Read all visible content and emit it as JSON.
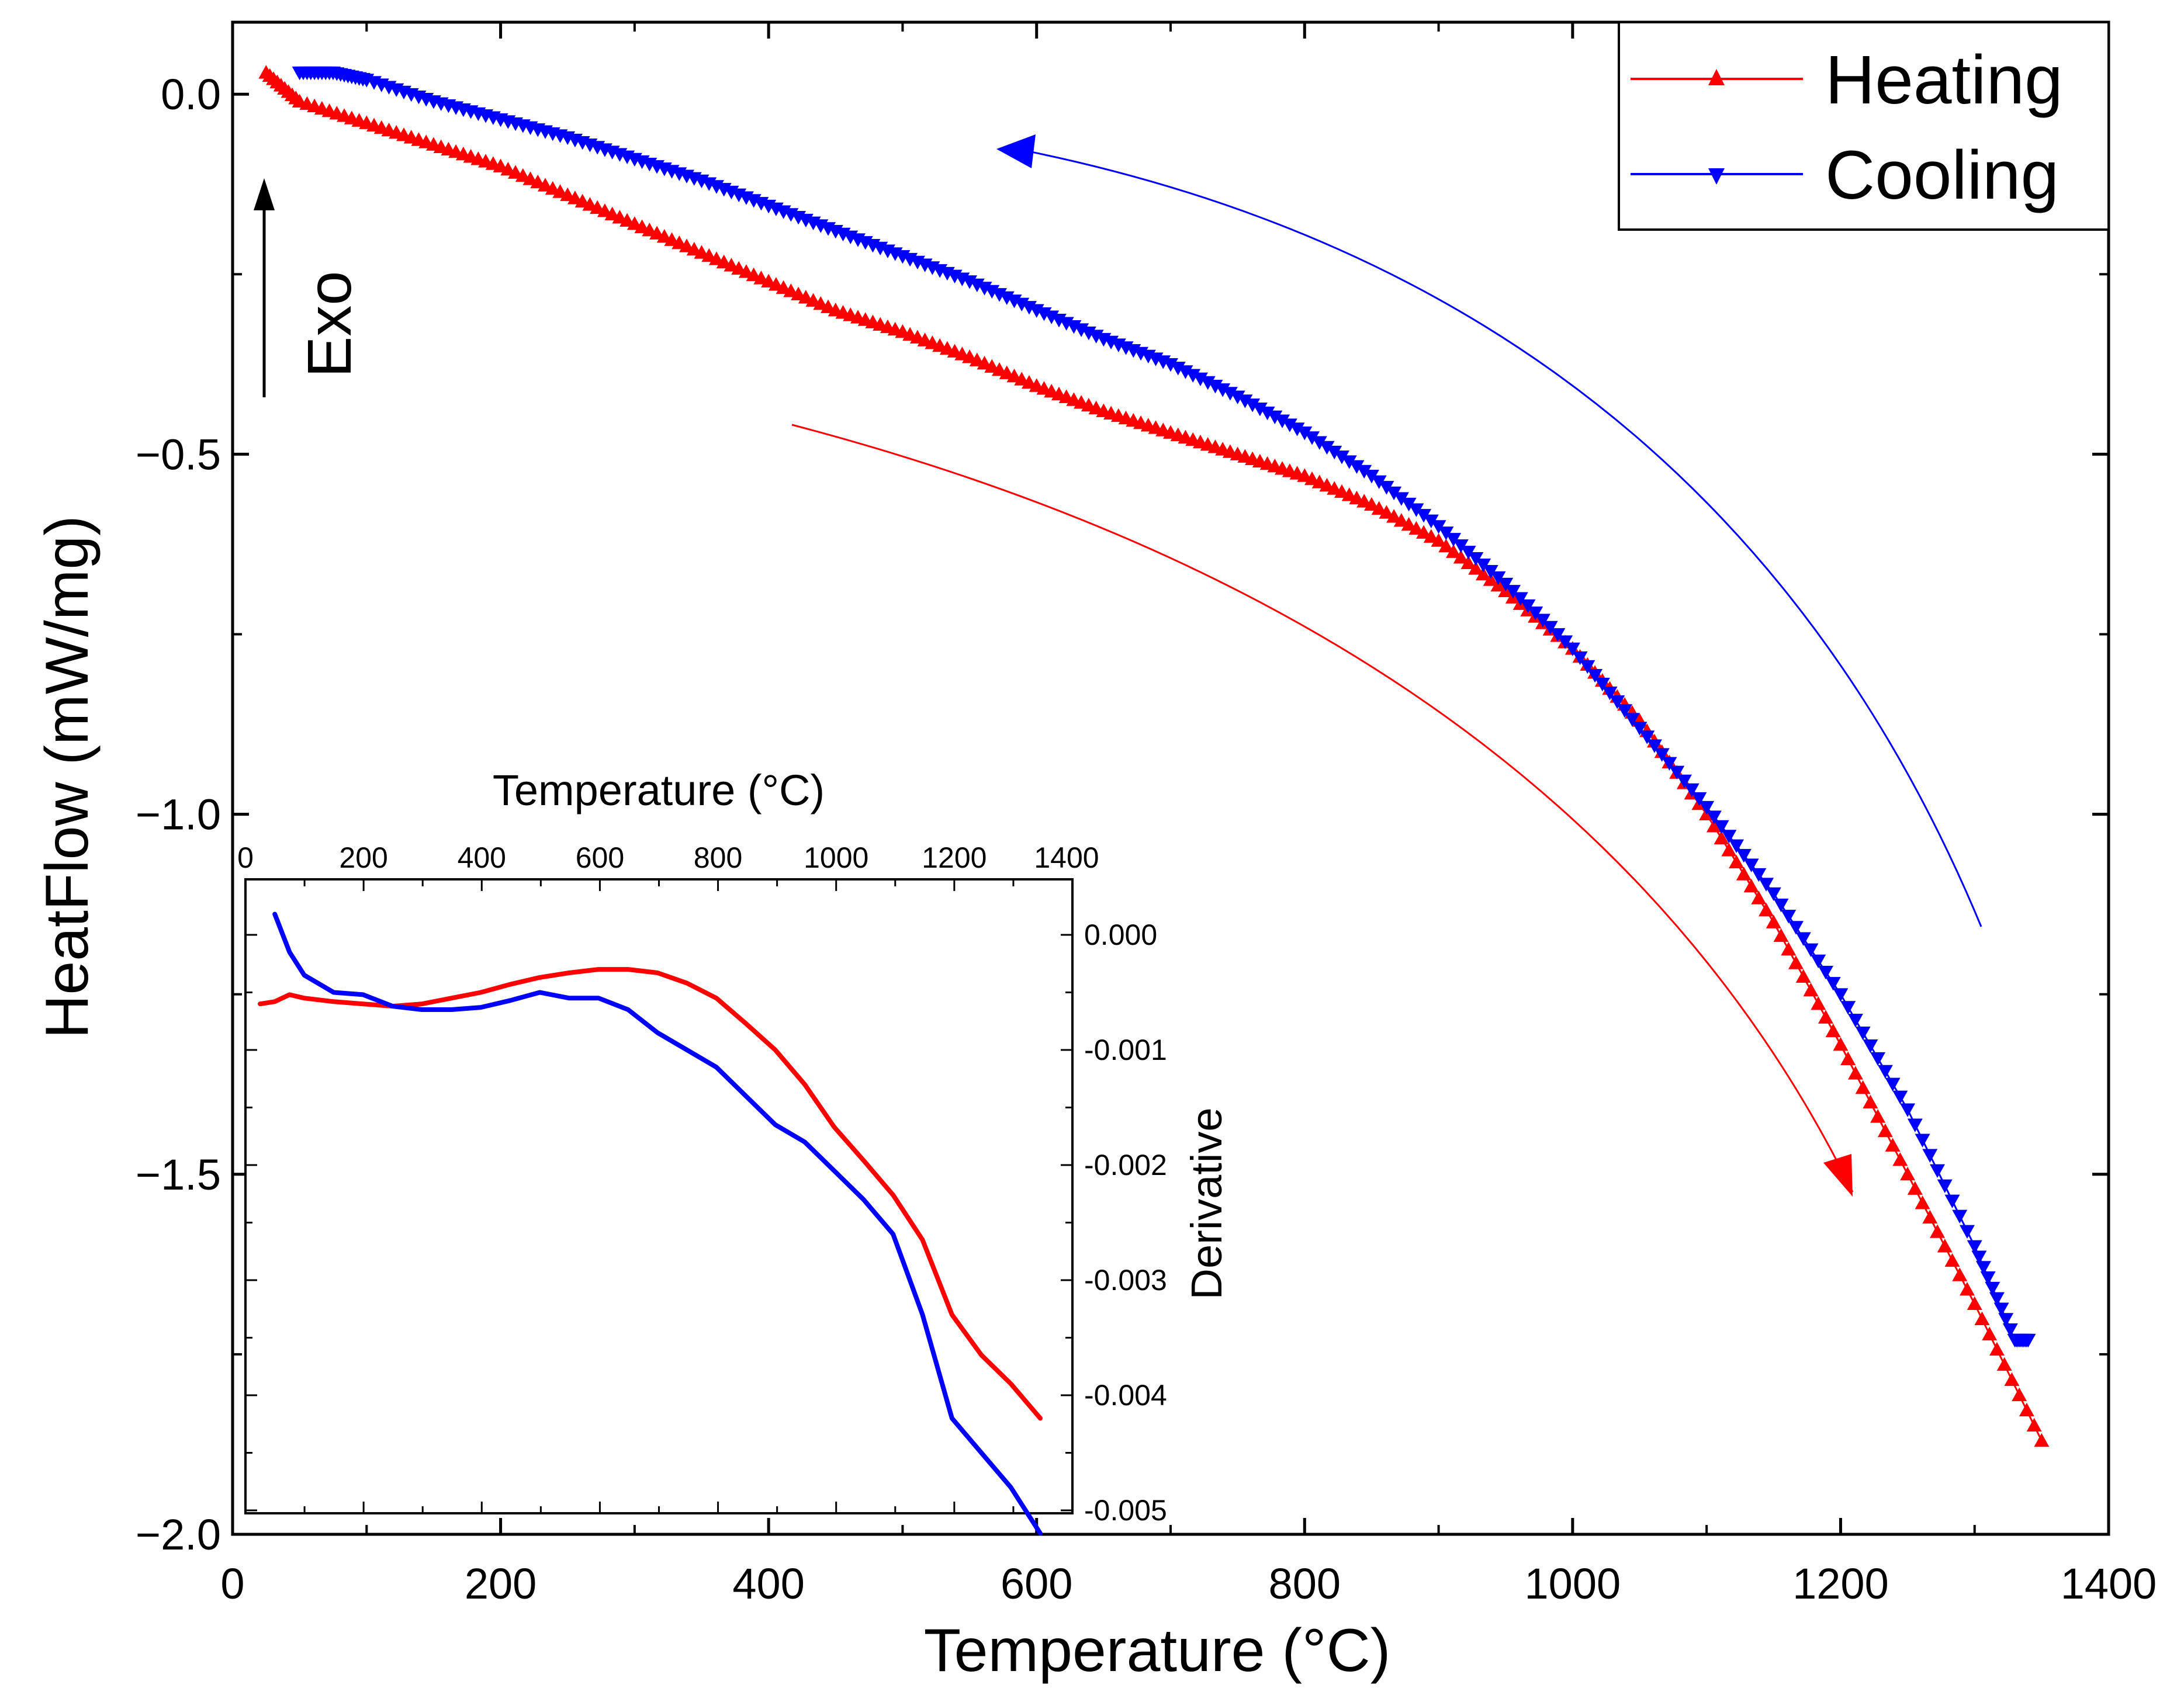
{
  "chart_data": [
    {
      "id": "main",
      "type": "scatter",
      "title": "",
      "xlabel": "Temperature (°C)",
      "ylabel": "HeatFlow (mW/mg)",
      "xlim": [
        0,
        1400
      ],
      "ylim": [
        -2.0,
        0.1
      ],
      "xticks": [
        0,
        200,
        400,
        600,
        800,
        1000,
        1200,
        1400
      ],
      "xtick_labels": [
        "0",
        "200",
        "400",
        "600",
        "800",
        "1000",
        "1200",
        "1400"
      ],
      "yticks": [
        0.0,
        -0.5,
        -1.0,
        -1.5,
        -2.0
      ],
      "ytick_labels": [
        "0.0",
        "−0.5",
        "−1.0",
        "−1.5",
        "−2.0"
      ],
      "grid": false,
      "legend_position": "top-right",
      "series": [
        {
          "name": "Heating",
          "color": "#ff0000",
          "marker": "triangle-up",
          "x": [
            25,
            50,
            100,
            150,
            200,
            250,
            300,
            350,
            400,
            450,
            500,
            550,
            600,
            650,
            700,
            750,
            800,
            850,
            900,
            950,
            1000,
            1050,
            1100,
            1150,
            1200,
            1250,
            1300,
            1350
          ],
          "y": [
            0.03,
            -0.01,
            -0.04,
            -0.07,
            -0.1,
            -0.14,
            -0.18,
            -0.22,
            -0.26,
            -0.3,
            -0.33,
            -0.365,
            -0.405,
            -0.44,
            -0.47,
            -0.5,
            -0.53,
            -0.57,
            -0.62,
            -0.69,
            -0.77,
            -0.87,
            -1.0,
            -1.15,
            -1.32,
            -1.5,
            -1.68,
            -1.87
          ]
        },
        {
          "name": "Cooling",
          "color": "#0000ff",
          "marker": "triangle-down",
          "x": [
            1340,
            1330,
            1300,
            1250,
            1200,
            1150,
            1100,
            1050,
            1000,
            950,
            900,
            850,
            800,
            750,
            700,
            650,
            600,
            550,
            500,
            450,
            400,
            350,
            300,
            250,
            200,
            150,
            100,
            75,
            50
          ],
          "y": [
            -1.73,
            -1.73,
            -1.6,
            -1.41,
            -1.25,
            -1.11,
            -0.99,
            -0.88,
            -0.77,
            -0.68,
            -0.6,
            -0.53,
            -0.47,
            -0.42,
            -0.375,
            -0.34,
            -0.3,
            -0.26,
            -0.225,
            -0.19,
            -0.155,
            -0.12,
            -0.09,
            -0.06,
            -0.035,
            -0.01,
            0.02,
            0.03,
            0.03
          ]
        }
      ],
      "annotations": [
        {
          "text": "Exo",
          "type": "arrow-up"
        },
        {
          "text": "",
          "type": "red-arrow",
          "meaning": "heating direction"
        },
        {
          "text": "",
          "type": "blue-arrow",
          "meaning": "cooling direction"
        }
      ]
    },
    {
      "id": "inset",
      "type": "line",
      "xlabel": "Temperature (°C)",
      "ylabel": "Derivative",
      "xlim": [
        0,
        1400
      ],
      "ylim": [
        -0.005,
        0.0005
      ],
      "xticks": [
        0,
        200,
        400,
        600,
        800,
        1000,
        1200,
        1400
      ],
      "xtick_labels": [
        "0",
        "200",
        "400",
        "600",
        "800",
        "1000",
        "1200",
        "1400"
      ],
      "yticks": [
        0.0,
        -0.001,
        -0.002,
        -0.003,
        -0.004,
        -0.005
      ],
      "ytick_labels": [
        "0.000",
        "-0.001",
        "-0.002",
        "-0.003",
        "-0.004",
        "-0.005"
      ],
      "x_axis_position": "top",
      "y_axis_position": "right",
      "series": [
        {
          "name": "Heating",
          "color": "#ff0000",
          "x": [
            25,
            50,
            75,
            100,
            150,
            200,
            250,
            300,
            350,
            400,
            450,
            500,
            550,
            600,
            650,
            700,
            750,
            800,
            850,
            900,
            950,
            1000,
            1050,
            1100,
            1150,
            1200,
            1250,
            1300,
            1350
          ],
          "y": [
            -0.0006,
            -0.00058,
            -0.00052,
            -0.00055,
            -0.00058,
            -0.0006,
            -0.00062,
            -0.0006,
            -0.00055,
            -0.0005,
            -0.00043,
            -0.00037,
            -0.00033,
            -0.0003,
            -0.0003,
            -0.00033,
            -0.00042,
            -0.00055,
            -0.00077,
            -0.001,
            -0.0013,
            -0.00167,
            -0.00196,
            -0.00226,
            -0.00265,
            -0.0033,
            -0.00365,
            -0.0039,
            -0.0042
          ]
        },
        {
          "name": "Cooling",
          "color": "#0000ff",
          "x": [
            50,
            75,
            100,
            150,
            200,
            250,
            300,
            350,
            400,
            450,
            500,
            550,
            600,
            650,
            700,
            750,
            800,
            850,
            900,
            950,
            1000,
            1050,
            1100,
            1150,
            1200,
            1250,
            1300,
            1350
          ],
          "y": [
            0.00018,
            -0.00015,
            -0.00035,
            -0.0005,
            -0.00052,
            -0.00062,
            -0.00065,
            -0.00065,
            -0.00063,
            -0.00057,
            -0.0005,
            -0.00055,
            -0.00055,
            -0.00065,
            -0.00085,
            -0.001,
            -0.00115,
            -0.0014,
            -0.00165,
            -0.0018,
            -0.00205,
            -0.0023,
            -0.0026,
            -0.0033,
            -0.0042,
            -0.0045,
            -0.0048,
            -0.0052
          ]
        }
      ]
    }
  ],
  "legend": {
    "heating_label": "Heating",
    "cooling_label": "Cooling"
  },
  "labels": {
    "exo": "Exo"
  }
}
